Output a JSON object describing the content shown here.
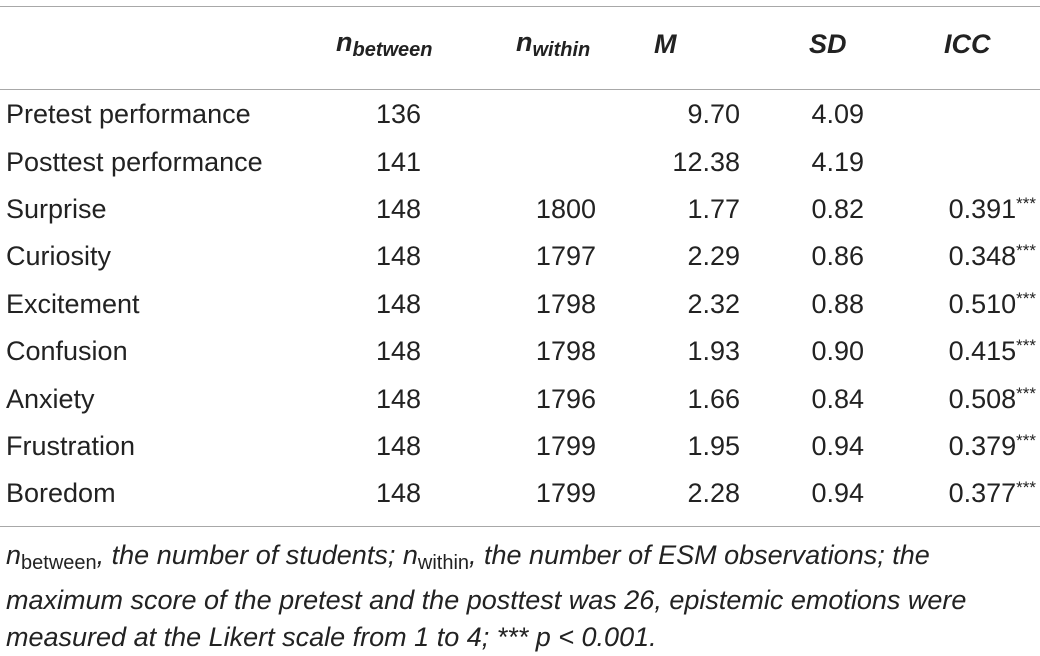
{
  "table": {
    "headers": {
      "n_between": {
        "base": "n",
        "sub": "between"
      },
      "n_within": {
        "base": "n",
        "sub": "within"
      },
      "mean": "M",
      "sd": "SD",
      "icc": "ICC"
    },
    "rows": [
      {
        "label": "Pretest performance",
        "n_between": "136",
        "n_within": "",
        "mean": "9.70",
        "sd": "4.09",
        "icc": "",
        "stars": ""
      },
      {
        "label": "Posttest performance",
        "n_between": "141",
        "n_within": "",
        "mean": "12.38",
        "sd": "4.19",
        "icc": "",
        "stars": ""
      },
      {
        "label": "Surprise",
        "n_between": "148",
        "n_within": "1800",
        "mean": "1.77",
        "sd": "0.82",
        "icc": "0.391",
        "stars": "***"
      },
      {
        "label": "Curiosity",
        "n_between": "148",
        "n_within": "1797",
        "mean": "2.29",
        "sd": "0.86",
        "icc": "0.348",
        "stars": "***"
      },
      {
        "label": "Excitement",
        "n_between": "148",
        "n_within": "1798",
        "mean": "2.32",
        "sd": "0.88",
        "icc": "0.510",
        "stars": "***"
      },
      {
        "label": "Confusion",
        "n_between": "148",
        "n_within": "1798",
        "mean": "1.93",
        "sd": "0.90",
        "icc": "0.415",
        "stars": "***"
      },
      {
        "label": "Anxiety",
        "n_between": "148",
        "n_within": "1796",
        "mean": "1.66",
        "sd": "0.84",
        "icc": "0.508",
        "stars": "***"
      },
      {
        "label": "Frustration",
        "n_between": "148",
        "n_within": "1799",
        "mean": "1.95",
        "sd": "0.94",
        "icc": "0.379",
        "stars": "***"
      },
      {
        "label": "Boredom",
        "n_between": "148",
        "n_within": "1799",
        "mean": "2.28",
        "sd": "0.94",
        "icc": "0.377",
        "stars": "***"
      }
    ]
  },
  "footnote": {
    "n1_base": "n",
    "n1_sub": "between",
    "n1_text": ", the number of students; ",
    "n2_base": "n",
    "n2_sub": "within",
    "n2_text": ", the number of ESM observations; the maximum score of the pretest and the posttest was 26, epistemic emotions were measured at the Likert scale from 1 to 4; *** p < 0.001."
  }
}
